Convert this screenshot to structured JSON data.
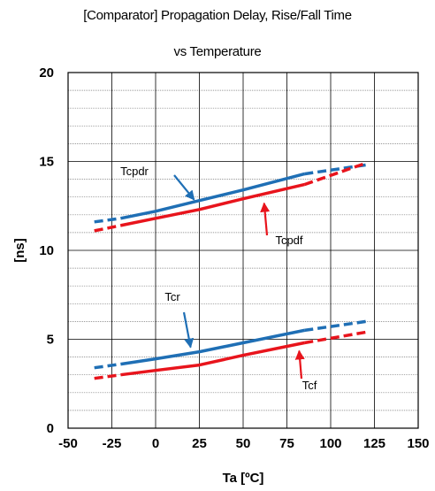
{
  "chart_data": {
    "type": "line",
    "title": "[Comparator] Propagation Delay, Rise/Fall Time",
    "subtitle": "vs Temperature",
    "xlabel": "Ta [ºC]",
    "ylabel": "[ns]",
    "xlim": [
      -50,
      150
    ],
    "ylim": [
      0,
      20
    ],
    "xticks": [
      "-50",
      "-25",
      "0",
      "25",
      "50",
      "75",
      "100",
      "125",
      "150"
    ],
    "yticks": [
      "0",
      "5",
      "10",
      "15",
      "20"
    ],
    "grid": true,
    "series": [
      {
        "name": "Tcpdr",
        "color": "#1f6fb5",
        "x": [
          -35,
          -20,
          0,
          25,
          50,
          85,
          120
        ],
        "y": [
          11.6,
          11.8,
          12.2,
          12.8,
          13.4,
          14.3,
          14.8
        ],
        "dashed_from_x": 85,
        "dashed_to_x": -20
      },
      {
        "name": "Tcpdf",
        "color": "#e8141c",
        "x": [
          -35,
          -20,
          0,
          25,
          50,
          85,
          120
        ],
        "y": [
          11.1,
          11.4,
          11.8,
          12.3,
          12.9,
          13.7,
          14.9
        ],
        "dashed_from_x": 85,
        "dashed_to_x": -20
      },
      {
        "name": "Tcr",
        "color": "#1f6fb5",
        "x": [
          -35,
          -20,
          0,
          25,
          50,
          85,
          120
        ],
        "y": [
          3.4,
          3.6,
          3.9,
          4.3,
          4.8,
          5.5,
          6.0
        ],
        "dashed_from_x": 85,
        "dashed_to_x": -20
      },
      {
        "name": "Tcf",
        "color": "#e8141c",
        "x": [
          -35,
          -20,
          0,
          25,
          50,
          85,
          120
        ],
        "y": [
          2.8,
          3.0,
          3.25,
          3.55,
          4.1,
          4.8,
          5.4
        ],
        "dashed_from_x": 85,
        "dashed_to_x": -20
      }
    ],
    "annotations": [
      {
        "text": "Tcpdr",
        "series": "Tcpdr",
        "arrow_to": [
          22,
          12.7
        ]
      },
      {
        "text": "Tcpdf",
        "series": "Tcpdf",
        "arrow_to": [
          62,
          12.8
        ]
      },
      {
        "text": "Tcr",
        "series": "Tcr",
        "arrow_to": [
          20,
          4.4
        ]
      },
      {
        "text": "Tcf",
        "series": "Tcf",
        "arrow_to": [
          82,
          4.5
        ]
      }
    ]
  }
}
